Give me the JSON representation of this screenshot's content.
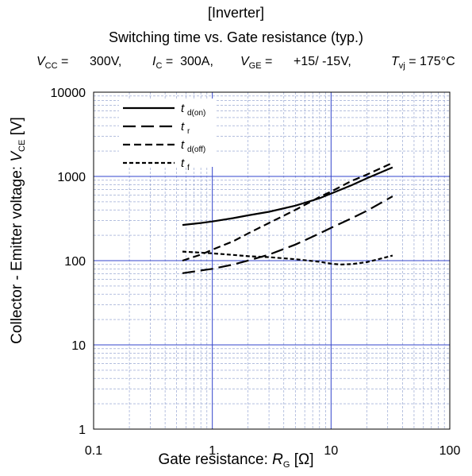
{
  "header": {
    "line1": "[Inverter]",
    "line2": "Switching time vs. Gate resistance  (typ.)"
  },
  "conditions": {
    "vcc_sym": "V",
    "vcc_sub": "CC",
    "vcc_val": "=      300V,",
    "ic_sym": "I",
    "ic_sub": "C",
    "ic_val": "=  300A,",
    "vge_sym": "V",
    "vge_sub": "GE",
    "vge_val": "=      +15/ -15V,",
    "tvj_sym": "T",
    "tvj_sub": "vj",
    "tvj_val": "= 175°C"
  },
  "axes": {
    "xlabel_text": "Gate resistance: ",
    "xlabel_sym": "R",
    "xlabel_sub": "G",
    "xlabel_unit": " [Ω]",
    "ylabel_text": "Collector - Emitter voltage: ",
    "ylabel_sym": "V",
    "ylabel_sub": "CE",
    "ylabel_unit": " [V]"
  },
  "colors": {
    "major_grid": "#3344cc",
    "minor_grid": "#8899cc",
    "series": "#000000"
  },
  "chart_data": {
    "type": "line",
    "x_scale": "log",
    "y_scale": "log",
    "xlim": [
      0.1,
      100
    ],
    "ylim": [
      1,
      10000
    ],
    "x_ticks": [
      0.1,
      1,
      10,
      100
    ],
    "x_tick_labels": [
      "0.1",
      "1",
      "10",
      "100"
    ],
    "y_ticks": [
      1,
      10,
      100,
      1000,
      10000
    ],
    "y_tick_labels": [
      "1",
      "10",
      "100",
      "1000",
      "10000"
    ],
    "grid": true,
    "legend_position": "top-left",
    "series": [
      {
        "name": "td(on)",
        "label_main": "t",
        "label_sub": "d(on)",
        "dash": "solid",
        "x": [
          0.56,
          0.8,
          1.0,
          1.5,
          2.0,
          3.0,
          5.0,
          8.0,
          10.0,
          15.0,
          20.0,
          33.0
        ],
        "y": [
          265,
          280,
          292,
          320,
          345,
          380,
          450,
          550,
          625,
          790,
          950,
          1280
        ]
      },
      {
        "name": "tr",
        "label_main": "t",
        "label_sub": "r",
        "dash": "longdash",
        "x": [
          0.56,
          1.0,
          1.5,
          2.0,
          3.0,
          5.0,
          8.0,
          10.0,
          15.0,
          20.0,
          33.0
        ],
        "y": [
          71,
          80,
          90,
          100,
          118,
          155,
          210,
          245,
          320,
          390,
          580
        ]
      },
      {
        "name": "td(off)",
        "label_main": "t",
        "label_sub": "d(off)",
        "dash": "dash",
        "x": [
          0.56,
          0.8,
          1.0,
          1.5,
          2.0,
          3.0,
          5.0,
          8.0,
          10.0,
          15.0,
          20.0,
          33.0
        ],
        "y": [
          100,
          118,
          135,
          170,
          210,
          280,
          400,
          570,
          660,
          890,
          1050,
          1450
        ]
      },
      {
        "name": "tf",
        "label_main": "t",
        "label_sub": "f",
        "dash": "shortdash",
        "x": [
          0.56,
          1.0,
          1.5,
          2.0,
          3.0,
          5.0,
          8.0,
          10.0,
          12.0,
          15.0,
          20.0,
          33.0
        ],
        "y": [
          128,
          122,
          117,
          113,
          110,
          104,
          97,
          92,
          90,
          91,
          96,
          115
        ]
      }
    ]
  }
}
